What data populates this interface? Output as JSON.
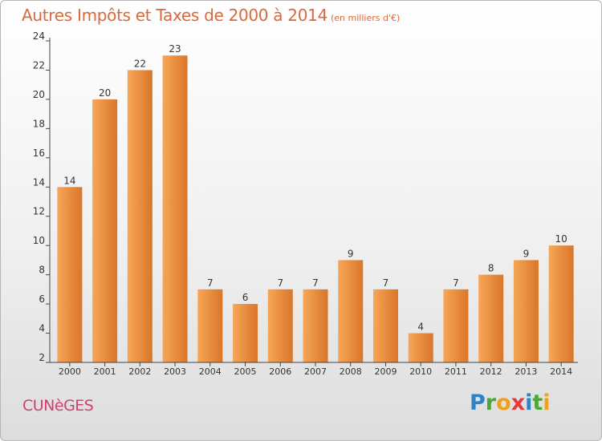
{
  "header": {
    "title": "Autres Impôts et Taxes de 2000 à 2014",
    "subtitle": "(en milliers d'€)"
  },
  "footer": {
    "city": "CUNèGES",
    "logo_letters": [
      {
        "ch": "P",
        "color": "#2e82c8"
      },
      {
        "ch": "r",
        "color": "#49a836"
      },
      {
        "ch": "o",
        "color": "#f0a11c"
      },
      {
        "ch": "x",
        "color": "#e23b3b"
      },
      {
        "ch": "i",
        "color": "#2e82c8"
      },
      {
        "ch": "t",
        "color": "#49a836"
      },
      {
        "ch": "i",
        "color": "#f0a11c"
      }
    ]
  },
  "colors": {
    "bar_light": "#f7a657",
    "bar_dark": "#d9762a",
    "title": "#d8693c",
    "city": "#d0406f"
  },
  "chart_data": {
    "type": "bar",
    "categories": [
      "2000",
      "2001",
      "2002",
      "2003",
      "2004",
      "2005",
      "2006",
      "2007",
      "2008",
      "2009",
      "2010",
      "2011",
      "2012",
      "2013",
      "2014"
    ],
    "values": [
      14,
      20,
      22,
      23,
      7,
      6,
      7,
      7,
      9,
      7,
      4,
      7,
      8,
      9,
      10
    ],
    "ylim": [
      2,
      24
    ],
    "yticks": [
      2,
      4,
      6,
      8,
      10,
      12,
      14,
      16,
      18,
      20,
      22,
      24
    ],
    "grid": false,
    "legend": "none"
  }
}
